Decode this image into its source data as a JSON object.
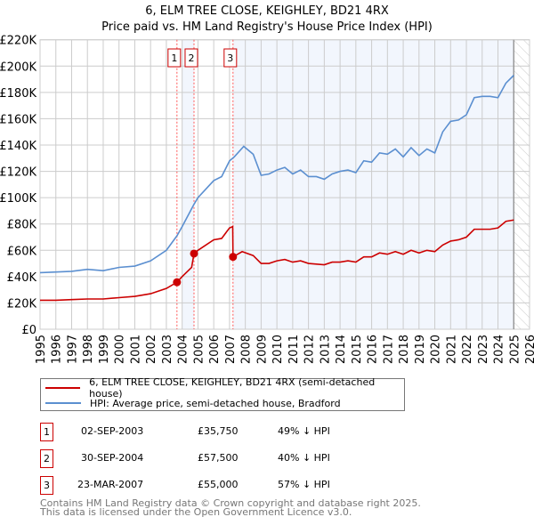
{
  "chart_data": {
    "type": "line",
    "title": "6, ELM TREE CLOSE, KEIGHLEY, BD21 4RX",
    "subtitle": "Price paid vs. HM Land Registry's House Price Index (HPI)",
    "xlim": [
      1995,
      2026
    ],
    "ylim": [
      0,
      220000
    ],
    "yticks": [
      {
        "v": 0,
        "label": "£0"
      },
      {
        "v": 20000,
        "label": "£20K"
      },
      {
        "v": 40000,
        "label": "£40K"
      },
      {
        "v": 60000,
        "label": "£60K"
      },
      {
        "v": 80000,
        "label": "£80K"
      },
      {
        "v": 100000,
        "label": "£100K"
      },
      {
        "v": 120000,
        "label": "£120K"
      },
      {
        "v": 140000,
        "label": "£140K"
      },
      {
        "v": 160000,
        "label": "£160K"
      },
      {
        "v": 180000,
        "label": "£180K"
      },
      {
        "v": 200000,
        "label": "£200K"
      },
      {
        "v": 220000,
        "label": "£220K"
      }
    ],
    "xticks": [
      "1995",
      "1996",
      "1997",
      "1998",
      "1999",
      "2000",
      "2001",
      "2002",
      "2003",
      "2004",
      "2005",
      "2006",
      "2007",
      "2008",
      "2009",
      "2010",
      "2011",
      "2012",
      "2013",
      "2014",
      "2015",
      "2016",
      "2017",
      "2018",
      "2019",
      "2020",
      "2021",
      "2022",
      "2023",
      "2024",
      "2025",
      "2026"
    ],
    "grid": true,
    "series": [
      {
        "name": "6, ELM TREE CLOSE, KEIGHLEY, BD21 4RX (semi-detached house)",
        "color": "#cc0000",
        "points": [
          [
            1995,
            22000
          ],
          [
            1996,
            22000
          ],
          [
            1997,
            22500
          ],
          [
            1998,
            23000
          ],
          [
            1999,
            23000
          ],
          [
            2000,
            24000
          ],
          [
            2001,
            25000
          ],
          [
            2002,
            27000
          ],
          [
            2003,
            31000
          ],
          [
            2003.67,
            35750
          ],
          [
            2004,
            40000
          ],
          [
            2004.6,
            47000
          ],
          [
            2004.75,
            57500
          ],
          [
            2005,
            60000
          ],
          [
            2006,
            68000
          ],
          [
            2006.5,
            69000
          ],
          [
            2007,
            77000
          ],
          [
            2007.2,
            78000
          ],
          [
            2007.22,
            55000
          ],
          [
            2007.8,
            59000
          ],
          [
            2008.5,
            56000
          ],
          [
            2009,
            50000
          ],
          [
            2009.5,
            50000
          ],
          [
            2010,
            52000
          ],
          [
            2010.5,
            53000
          ],
          [
            2011,
            51000
          ],
          [
            2011.5,
            52000
          ],
          [
            2012,
            50000
          ],
          [
            2013,
            49000
          ],
          [
            2013.5,
            51000
          ],
          [
            2014,
            51000
          ],
          [
            2014.5,
            52000
          ],
          [
            2015,
            51000
          ],
          [
            2015.5,
            55000
          ],
          [
            2016,
            55000
          ],
          [
            2016.5,
            58000
          ],
          [
            2017,
            57000
          ],
          [
            2017.5,
            59000
          ],
          [
            2018,
            57000
          ],
          [
            2018.5,
            60000
          ],
          [
            2019,
            58000
          ],
          [
            2019.5,
            60000
          ],
          [
            2020,
            59000
          ],
          [
            2020.5,
            64000
          ],
          [
            2021,
            67000
          ],
          [
            2021.5,
            68000
          ],
          [
            2022,
            70000
          ],
          [
            2022.5,
            76000
          ],
          [
            2023,
            76000
          ],
          [
            2023.5,
            76000
          ],
          [
            2024,
            77000
          ],
          [
            2024.5,
            82000
          ],
          [
            2025,
            83000
          ]
        ]
      },
      {
        "name": "HPI: Average price, semi-detached house, Bradford",
        "color": "#5b8fd0",
        "points": [
          [
            1995,
            43000
          ],
          [
            1996,
            43500
          ],
          [
            1997,
            44000
          ],
          [
            1998,
            45500
          ],
          [
            1999,
            44500
          ],
          [
            2000,
            47000
          ],
          [
            2001,
            48000
          ],
          [
            2002,
            52000
          ],
          [
            2003,
            60000
          ],
          [
            2003.67,
            71000
          ],
          [
            2004,
            78000
          ],
          [
            2004.75,
            95000
          ],
          [
            2005,
            100000
          ],
          [
            2006,
            113000
          ],
          [
            2006.5,
            116000
          ],
          [
            2007,
            128000
          ],
          [
            2007.3,
            131000
          ],
          [
            2007.9,
            139000
          ],
          [
            2008.5,
            133000
          ],
          [
            2009,
            117000
          ],
          [
            2009.5,
            118000
          ],
          [
            2010,
            121000
          ],
          [
            2010.5,
            123000
          ],
          [
            2011,
            118000
          ],
          [
            2011.5,
            121000
          ],
          [
            2012,
            116000
          ],
          [
            2012.5,
            116000
          ],
          [
            2013,
            114000
          ],
          [
            2013.5,
            118000
          ],
          [
            2014,
            120000
          ],
          [
            2014.5,
            121000
          ],
          [
            2015,
            119000
          ],
          [
            2015.5,
            128000
          ],
          [
            2016,
            127000
          ],
          [
            2016.5,
            134000
          ],
          [
            2017,
            133000
          ],
          [
            2017.5,
            137000
          ],
          [
            2018,
            131000
          ],
          [
            2018.5,
            138000
          ],
          [
            2019,
            132000
          ],
          [
            2019.5,
            137000
          ],
          [
            2020,
            134000
          ],
          [
            2020.5,
            150000
          ],
          [
            2021,
            158000
          ],
          [
            2021.5,
            159000
          ],
          [
            2022,
            163000
          ],
          [
            2022.5,
            176000
          ],
          [
            2023,
            177000
          ],
          [
            2023.5,
            177000
          ],
          [
            2024,
            176000
          ],
          [
            2024.5,
            187000
          ],
          [
            2025,
            193000
          ]
        ]
      }
    ],
    "sales": [
      {
        "id": "1",
        "x": 2003.67,
        "price": 35750,
        "date": "02-SEP-2003",
        "price_label": "£35,750",
        "hpi": "49% ↓ HPI"
      },
      {
        "id": "2",
        "x": 2004.75,
        "price": 57500,
        "date": "30-SEP-2004",
        "price_label": "£57,500",
        "hpi": "40% ↓ HPI"
      },
      {
        "id": "3",
        "x": 2007.22,
        "price": 55000,
        "date": "23-MAR-2007",
        "price_label": "£55,000",
        "hpi": "57% ↓ HPI"
      }
    ],
    "shaded_ranges": [
      [
        2004,
        2004.75
      ],
      [
        2007.22,
        2025
      ]
    ],
    "hatched_range": [
      2025,
      2026
    ],
    "legend_position": "below"
  },
  "footer": [
    "Contains HM Land Registry data © Crown copyright and database right 2025.",
    "This data is licensed under the Open Government Licence v3.0."
  ]
}
